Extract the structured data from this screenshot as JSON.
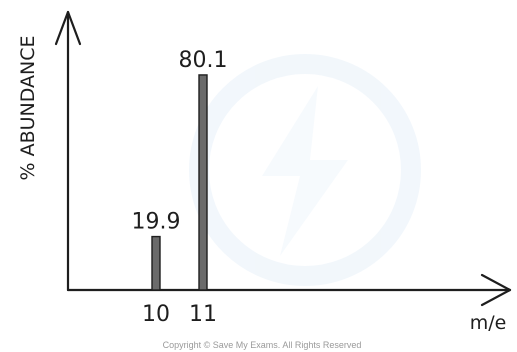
{
  "chart_data": {
    "type": "bar",
    "ylabel": "% ABUNDANCE",
    "xlabel": "m/e",
    "categories": [
      "10",
      "11"
    ],
    "values": [
      19.9,
      80.1
    ],
    "data_labels": [
      "19.9",
      "80.1"
    ],
    "ylim": [
      0,
      100
    ],
    "grid": false,
    "legend": "none",
    "bar_color": "#6b6b6b"
  },
  "watermark": {
    "text": "Copyright © Save My Exams. All Rights Reserved"
  }
}
